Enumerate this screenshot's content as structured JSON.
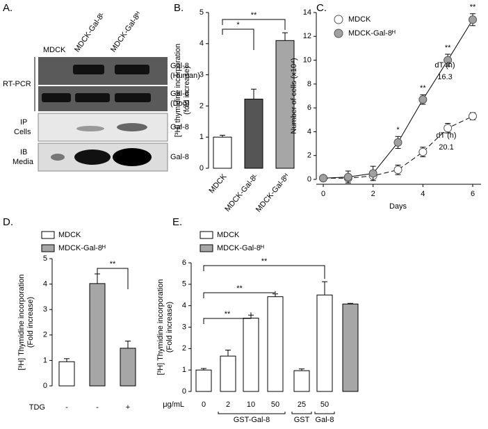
{
  "panel_a": {
    "panel": "A.",
    "lanes": [
      "MDCK",
      "MDCK-Gal-8ᴸ",
      "MDCK-Gal-8ᴴ"
    ],
    "left_labels": [
      "RT-PCR",
      "IP",
      "Cells",
      "IB",
      "Media"
    ],
    "right_labels": [
      "Gal-8",
      "(Human)",
      "Gal-8",
      "(Dog)",
      "Gal-8",
      "Gal-8"
    ]
  },
  "chart_data": [
    {
      "type": "bar",
      "panel": "B.",
      "ylabel": [
        "[³H] thymidine incorporation",
        "(fold increase)"
      ],
      "categories": [
        "MDCK",
        "MDCK-Gal-8ᴸ",
        "MDCK-Gal-8ᴴ"
      ],
      "values": [
        1.0,
        2.22,
        4.1
      ],
      "errors": [
        0.06,
        0.32,
        0.25
      ],
      "colors": [
        "#ffffff",
        "#555555",
        "#a6a6a6"
      ],
      "ylim": [
        0,
        5
      ],
      "yticks": [
        0,
        1,
        2,
        3,
        4,
        5
      ],
      "significance": [
        "*",
        "**"
      ]
    },
    {
      "type": "line",
      "panel": "C.",
      "xlabel": "Days",
      "ylabel": "Number of cells (x10⁴)",
      "x": [
        0,
        1,
        2,
        3,
        4,
        5,
        6
      ],
      "series": [
        {
          "name": "MDCK",
          "color": "#ffffff",
          "values": [
            0.1,
            0.1,
            0.3,
            0.8,
            2.3,
            4.3,
            5.3
          ],
          "errors": [
            0.1,
            0.2,
            0.2,
            0.4,
            0.4,
            0.4,
            0.3
          ],
          "point_labels": [
            null,
            null,
            null,
            null,
            null,
            null,
            null
          ]
        },
        {
          "name": "MDCK-Gal-8ᴴ",
          "color": "#a0a0a0",
          "values": [
            0.1,
            0.2,
            0.5,
            3.1,
            6.7,
            10.0,
            13.4
          ],
          "errors": [
            0.1,
            0.5,
            0.6,
            0.5,
            0.4,
            0.5,
            0.5
          ],
          "point_labels": [
            null,
            null,
            null,
            "*",
            "**",
            "**",
            "**"
          ]
        }
      ],
      "xlim": [
        0,
        6
      ],
      "xticks": [
        0,
        2,
        4,
        6
      ],
      "ylim": [
        0,
        14
      ],
      "yticks": [
        0,
        2,
        4,
        6,
        8,
        10,
        12,
        14
      ],
      "annotations": [
        "dT (h)",
        "16.3",
        "dT (h)",
        "20.1"
      ]
    },
    {
      "type": "bar",
      "panel": "D.",
      "legend": [
        {
          "name": "MDCK",
          "color": "#ffffff"
        },
        {
          "name": "MDCK-Gal-8ᴴ",
          "color": "#a6a6a6"
        }
      ],
      "ylabel": [
        "[³H] Thymidine incorporation",
        "(Fold increase)"
      ],
      "row_label": "TDG",
      "categories": [
        "-",
        "-",
        "+"
      ],
      "values": [
        0.95,
        4.02,
        1.48
      ],
      "errors": [
        0.12,
        0.38,
        0.28
      ],
      "colors": [
        "#ffffff",
        "#a6a6a6",
        "#a6a6a6"
      ],
      "ylim": [
        0,
        5
      ],
      "yticks": [
        0,
        1,
        2,
        3,
        4,
        5
      ],
      "significance": [
        "**"
      ]
    },
    {
      "type": "bar",
      "panel": "E.",
      "legend": [
        {
          "name": "MDCK",
          "color": "#ffffff"
        },
        {
          "name": "MDCK-Gal-8ᴴ",
          "color": "#a6a6a6"
        }
      ],
      "ylabel": [
        "[³H] Thymidine incorporation",
        "(Fold increase)"
      ],
      "row_label": "μg/mL",
      "categories": [
        "0",
        "2",
        "10",
        "50",
        "25",
        "50",
        null
      ],
      "groups": [
        "GST-Gal-8",
        "GST",
        "Gal-8"
      ],
      "values": [
        1.0,
        1.65,
        3.42,
        4.42,
        0.97,
        4.5,
        4.08
      ],
      "errors": [
        0.07,
        0.28,
        0.14,
        0.13,
        0.08,
        0.62,
        0.03
      ],
      "colors": [
        "#ffffff",
        "#ffffff",
        "#ffffff",
        "#ffffff",
        "#ffffff",
        "#ffffff",
        "#a6a6a6"
      ],
      "ylim": [
        0,
        6
      ],
      "yticks": [
        0,
        1,
        2,
        3,
        4,
        5,
        6
      ],
      "significance": [
        "**",
        "**",
        "**"
      ]
    }
  ]
}
